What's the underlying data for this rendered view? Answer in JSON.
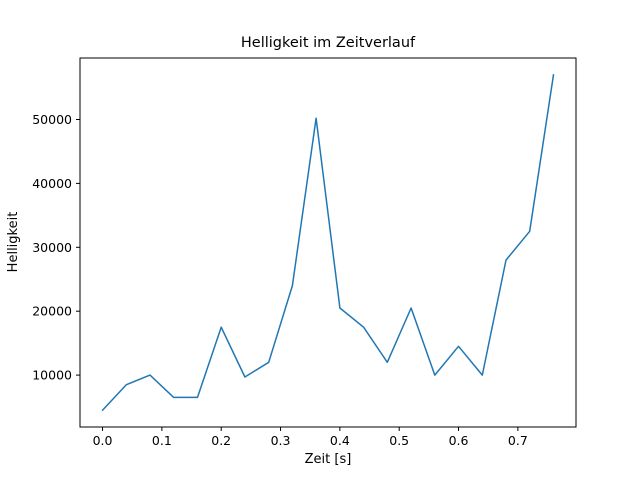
{
  "figure": {
    "background": "#ffffff"
  },
  "chart_data": {
    "type": "line",
    "title": "Helligkeit im Zeitverlauf",
    "xlabel": "Zeit [s]",
    "ylabel": "Helligkeit",
    "line_color": "#1f77b4",
    "line_width": 1.5,
    "grid": false,
    "legend": null,
    "x": [
      0.0,
      0.04,
      0.08,
      0.12,
      0.16,
      0.2,
      0.24,
      0.28,
      0.32,
      0.36,
      0.4,
      0.44,
      0.48,
      0.52,
      0.56,
      0.6,
      0.64,
      0.68,
      0.72,
      0.76
    ],
    "y": [
      4500,
      8500,
      10000,
      6500,
      6500,
      17500,
      9700,
      12000,
      24000,
      50200,
      20500,
      17500,
      12000,
      20500,
      10000,
      14500,
      10000,
      28000,
      32500,
      57000
    ],
    "xticks": [
      0.0,
      0.1,
      0.2,
      0.3,
      0.4,
      0.5,
      0.6,
      0.7
    ],
    "xtick_labels": [
      "0.0",
      "0.1",
      "0.2",
      "0.3",
      "0.4",
      "0.5",
      "0.6",
      "0.7"
    ],
    "yticks": [
      10000,
      20000,
      30000,
      40000,
      50000
    ],
    "ytick_labels": [
      "10000",
      "20000",
      "30000",
      "40000",
      "50000"
    ],
    "xlim": [
      -0.038,
      0.798
    ],
    "ylim": [
      1875,
      59625
    ]
  }
}
